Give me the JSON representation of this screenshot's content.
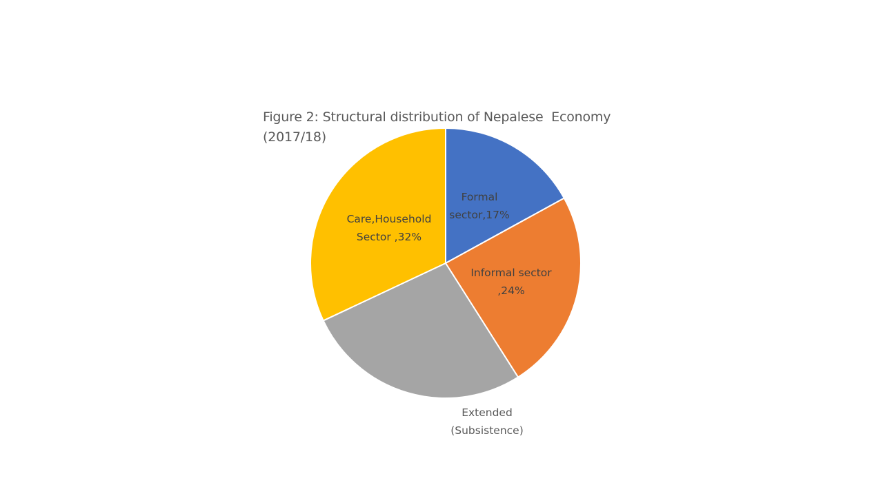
{
  "chart_data": {
    "type": "pie",
    "title": "Figure 2: Structural distribution of Nepalese  Economy\n(2017/18)",
    "start_angle": "12 o'clock, clockwise",
    "slices": [
      {
        "category": "Formal sector",
        "value": 17,
        "label_lines": [
          "Formal",
          "sector,17%"
        ],
        "color": "#4472C4"
      },
      {
        "category": "Informal sector",
        "value": 24,
        "label_lines": [
          "Informal sector",
          ",24%"
        ],
        "color": "#ED7D31"
      },
      {
        "category": "Extended (Subsistence)",
        "value": 27,
        "label_lines": [
          "Extended",
          "(Subsistence)"
        ],
        "color": "#A5A5A5"
      },
      {
        "category": "Care,Household Sector",
        "value": 32,
        "label_lines": [
          "Care,Household",
          "Sector ,32%"
        ],
        "color": "#FFC000"
      }
    ]
  }
}
